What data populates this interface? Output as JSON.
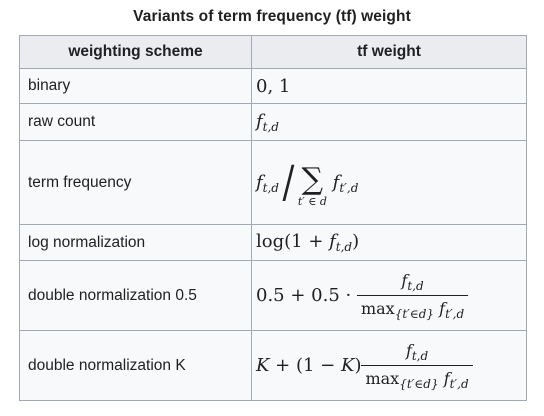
{
  "caption": "Variants of term frequency (tf) weight",
  "columns": {
    "scheme": "weighting scheme",
    "weight": "tf weight"
  },
  "rows": [
    {
      "scheme": "binary",
      "weight": "0, 1"
    },
    {
      "scheme": "raw count",
      "weight": "f_{t,d}"
    },
    {
      "scheme": "term frequency",
      "weight": "f_{t,d} / Σ_{t'∈d} f_{t',d}"
    },
    {
      "scheme": "log normalization",
      "weight": "log(1 + f_{t,d})"
    },
    {
      "scheme": "double normalization 0.5",
      "weight": "0.5 + 0.5 · f_{t,d} / max_{t'∈d} f_{t',d}"
    },
    {
      "scheme": "double normalization K",
      "weight": "K + (1 − K) f_{t,d} / max_{t'∈d} f_{t',d}"
    }
  ],
  "math": {
    "binary": "0, 1",
    "f": "f",
    "td": "t,d",
    "tpd": "t′,d",
    "sum_under": "t′ ∈ d",
    "sigma": "∑",
    "slash": "/",
    "log_open": "log(1 + ",
    "log_close": ")",
    "half_expr": "0.5 + 0.5 · ",
    "max": "max",
    "max_sub": "{t′∈d}",
    "K": "K",
    "k_expr": " + (1 − ",
    "k_close": ")"
  }
}
